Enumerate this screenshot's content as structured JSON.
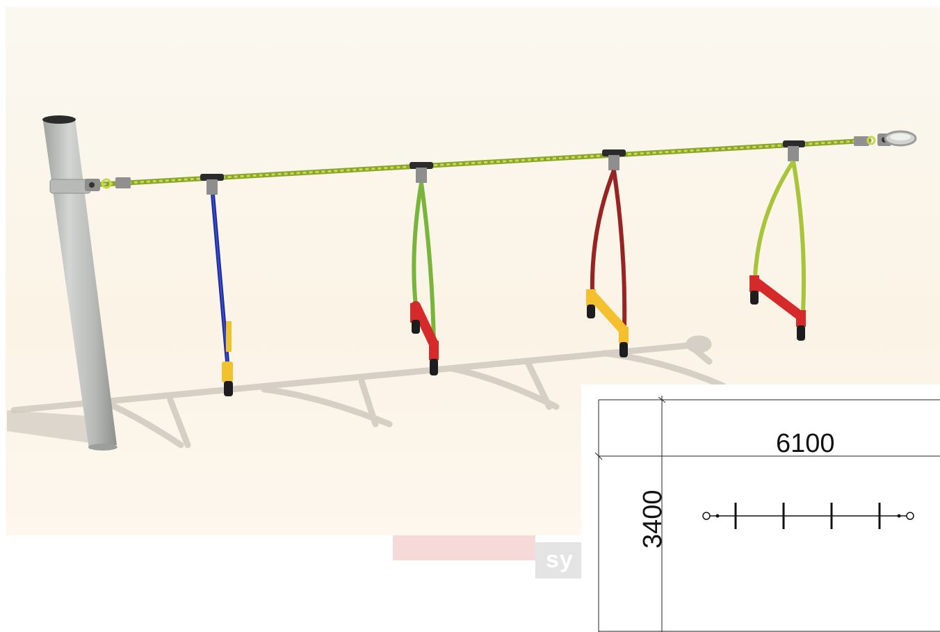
{
  "product": {
    "description_render": "swing-rope-with-four-seats",
    "components": [
      {
        "name": "post",
        "color": "#b9bbb9"
      },
      {
        "name": "rope",
        "color": "#a8c53a"
      },
      {
        "name": "seat-1",
        "rope_color": "#2a3cad",
        "seat_color": "#f2c22d"
      },
      {
        "name": "seat-2",
        "rope_color": "#7fbf3a",
        "seat_color": "#d62a2a"
      },
      {
        "name": "seat-3",
        "rope_color": "#9b2323",
        "seat_color": "#f4c02e"
      },
      {
        "name": "seat-4",
        "rope_color": "#a8c53a",
        "seat_color": "#d62a2a"
      }
    ]
  },
  "plan": {
    "width_label": "6100",
    "height_label": "3400"
  },
  "watermark": {
    "text": "sy"
  }
}
